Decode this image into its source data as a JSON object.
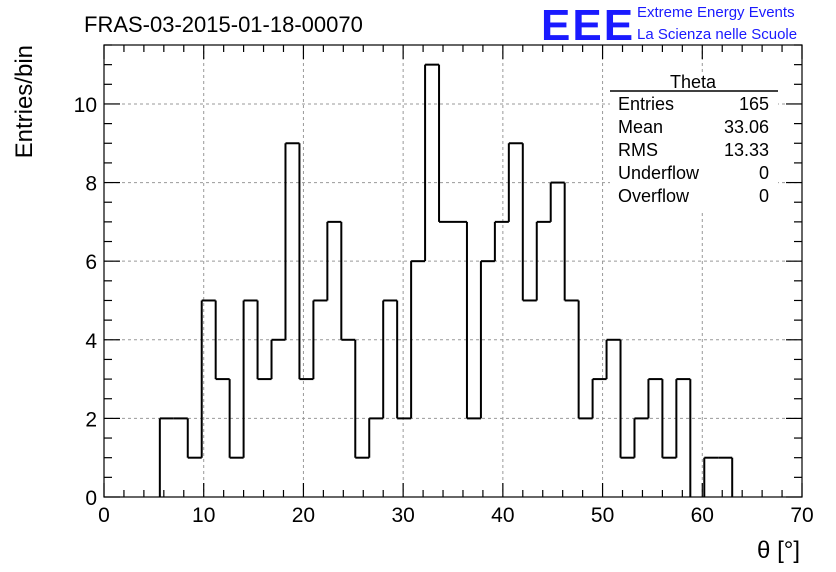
{
  "header": {
    "title": "FRAS-03-2015-01-18-00070",
    "logo_mark": "EEE",
    "logo_line1": "Extreme Energy Events",
    "logo_line2": "La Scienza nelle Scuole",
    "logo_color": "#1a1aff"
  },
  "stats_box": {
    "name": "Theta",
    "rows": [
      {
        "label": "Entries",
        "value": "165"
      },
      {
        "label": "Mean",
        "value": "33.06"
      },
      {
        "label": "RMS",
        "value": "13.33"
      },
      {
        "label": "Underflow",
        "value": "0"
      },
      {
        "label": "Overflow",
        "value": "0"
      }
    ]
  },
  "chart_data": {
    "type": "bar",
    "style": "step-histogram",
    "title": "FRAS-03-2015-01-18-00070",
    "xlabel": "θ [°]",
    "ylabel": "Entries/bin",
    "xlim": [
      0,
      70
    ],
    "ylim": [
      0,
      11.5
    ],
    "grid": true,
    "xticks": [
      0,
      10,
      20,
      30,
      40,
      50,
      60,
      70
    ],
    "yticks": [
      0,
      2,
      4,
      6,
      8,
      10
    ],
    "bin_edges": [
      0,
      1.4,
      2.8,
      4.2,
      5.6,
      7.0,
      8.4,
      9.8,
      11.2,
      12.6,
      14.0,
      15.4,
      16.8,
      18.2,
      19.6,
      21.0,
      22.4,
      23.8,
      25.2,
      26.6,
      28.0,
      29.4,
      30.8,
      32.2,
      33.6,
      35.0,
      36.4,
      37.8,
      39.2,
      40.6,
      42.0,
      43.4,
      44.8,
      46.2,
      47.6,
      49.0,
      50.4,
      51.8,
      53.2,
      54.6,
      56.0,
      57.4,
      58.8,
      60.2,
      61.6,
      63.0,
      64.4,
      65.8,
      67.2,
      68.6,
      70.0
    ],
    "values": [
      0,
      0,
      0,
      0,
      2,
      2,
      1,
      5,
      3,
      1,
      5,
      3,
      4,
      9,
      3,
      5,
      7,
      4,
      1,
      2,
      5,
      2,
      6,
      11,
      7,
      7,
      2,
      6,
      7,
      9,
      5,
      7,
      8,
      5,
      2,
      3,
      4,
      1,
      2,
      3,
      1,
      3,
      0,
      1,
      1,
      0,
      0,
      0,
      0,
      0
    ]
  }
}
